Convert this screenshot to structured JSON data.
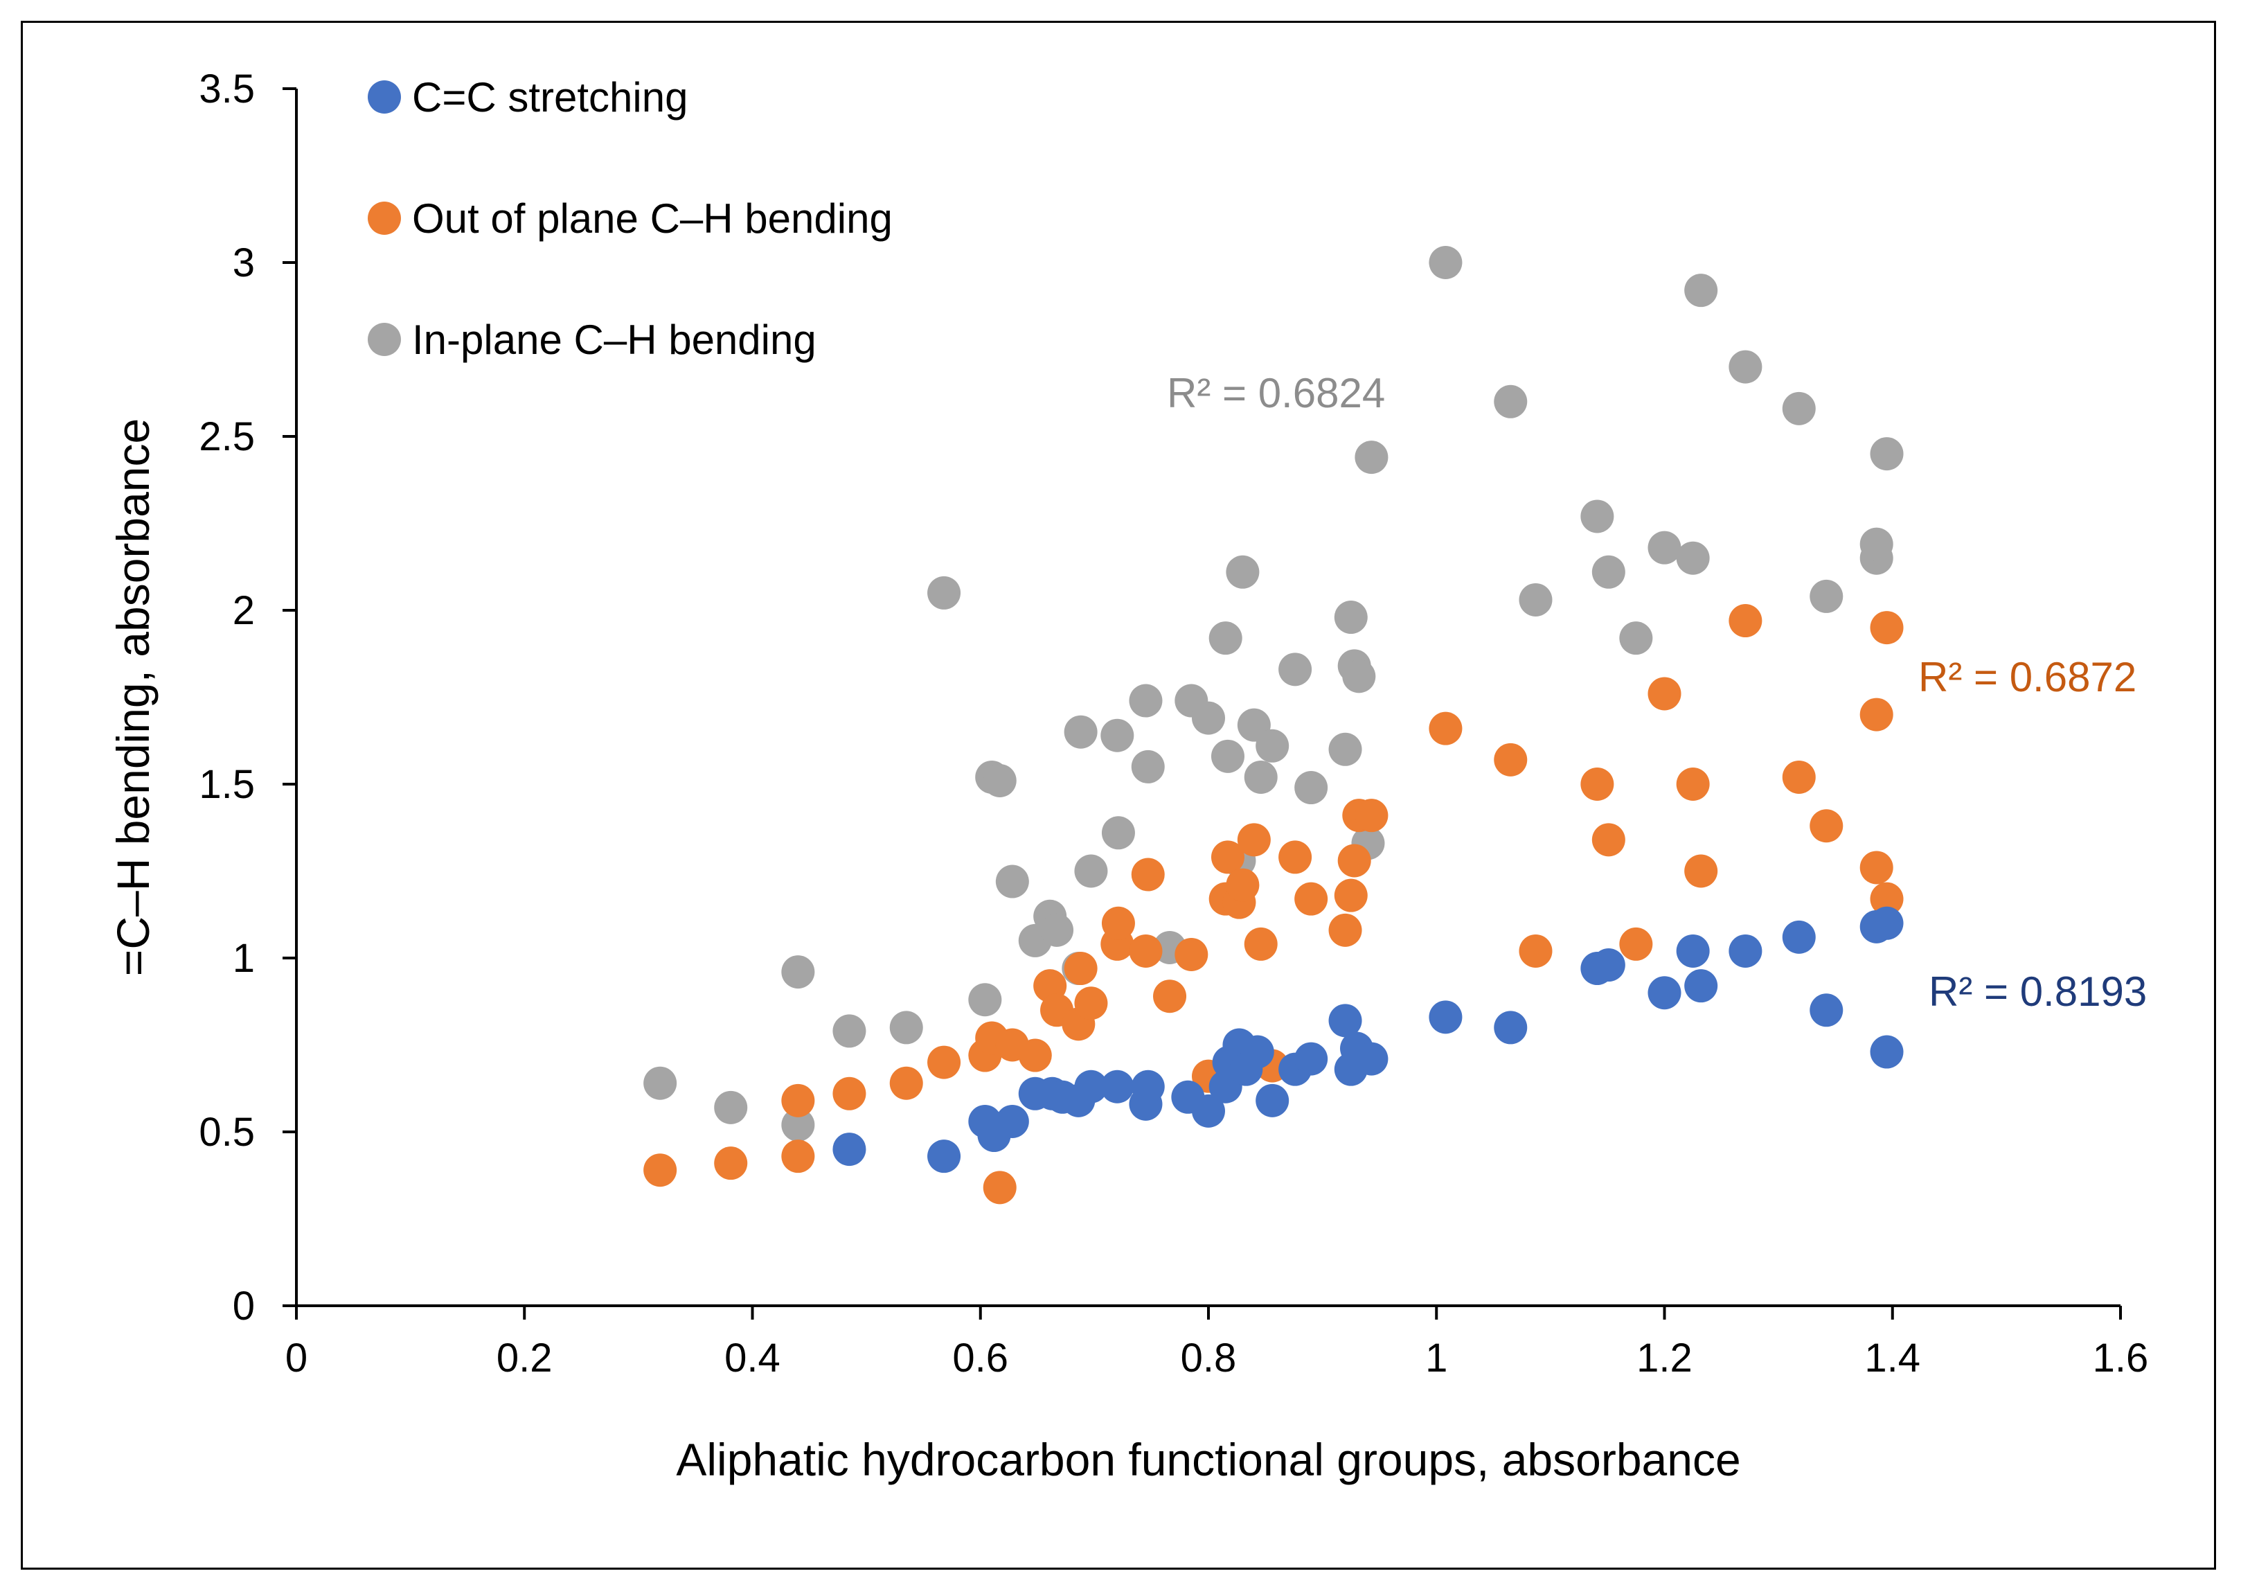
{
  "chart_data": {
    "type": "scatter",
    "title": "",
    "xlabel": "Aliphatic hydrocarbon functional groups, absorbance",
    "ylabel": "=C–H bending, absorbance",
    "xlim": [
      0,
      1.6
    ],
    "ylim": [
      0,
      3.5
    ],
    "xticks": [
      0,
      0.2,
      0.4,
      0.6,
      0.8,
      1,
      1.2,
      1.4,
      1.6
    ],
    "yticks": [
      0,
      0.5,
      1,
      1.5,
      2,
      2.5,
      3,
      3.5
    ],
    "xtick_labels": [
      "0",
      "0.2",
      "0.4",
      "0.6",
      "0.8",
      "1",
      "1.2",
      "1.4",
      "1.6"
    ],
    "ytick_labels": [
      "0",
      "0.5",
      "1",
      "1.5",
      "2",
      "2.5",
      "3",
      "3.5"
    ],
    "grid": false,
    "legend_position": "top-left",
    "series": [
      {
        "name": "C=C stretching",
        "color": "#4472C4",
        "r2_label": "R² = 0.8193",
        "r2_color": "#1F3B7A",
        "points": [
          [
            0.485,
            0.45
          ],
          [
            0.568,
            0.43
          ],
          [
            0.604,
            0.53
          ],
          [
            0.612,
            0.49
          ],
          [
            0.628,
            0.53
          ],
          [
            0.648,
            0.61
          ],
          [
            0.663,
            0.61
          ],
          [
            0.672,
            0.6
          ],
          [
            0.686,
            0.59
          ],
          [
            0.697,
            0.63
          ],
          [
            0.72,
            0.63
          ],
          [
            0.745,
            0.58
          ],
          [
            0.747,
            0.63
          ],
          [
            0.782,
            0.6
          ],
          [
            0.8,
            0.56
          ],
          [
            0.815,
            0.63
          ],
          [
            0.818,
            0.7
          ],
          [
            0.827,
            0.75
          ],
          [
            0.833,
            0.68
          ],
          [
            0.843,
            0.73
          ],
          [
            0.856,
            0.59
          ],
          [
            0.876,
            0.68
          ],
          [
            0.89,
            0.71
          ],
          [
            0.92,
            0.82
          ],
          [
            0.925,
            0.68
          ],
          [
            0.93,
            0.74
          ],
          [
            0.943,
            0.71
          ],
          [
            1.008,
            0.83
          ],
          [
            1.065,
            0.8
          ],
          [
            1.141,
            0.97
          ],
          [
            1.151,
            0.98
          ],
          [
            1.2,
            0.9
          ],
          [
            1.225,
            1.02
          ],
          [
            1.232,
            0.92
          ],
          [
            1.271,
            1.02
          ],
          [
            1.318,
            1.06
          ],
          [
            1.342,
            0.85
          ],
          [
            1.386,
            1.09
          ],
          [
            1.395,
            1.1
          ],
          [
            1.395,
            0.73
          ]
        ]
      },
      {
        "name": "Out of plane C–H bending",
        "color": "#ED7D31",
        "r2_label": "R² = 0.6872",
        "r2_color": "#C55A11",
        "points": [
          [
            0.319,
            0.39
          ],
          [
            0.381,
            0.41
          ],
          [
            0.44,
            0.43
          ],
          [
            0.44,
            0.59
          ],
          [
            0.485,
            0.61
          ],
          [
            0.535,
            0.64
          ],
          [
            0.568,
            0.7
          ],
          [
            0.604,
            0.72
          ],
          [
            0.61,
            0.77
          ],
          [
            0.617,
            0.34
          ],
          [
            0.628,
            0.75
          ],
          [
            0.648,
            0.72
          ],
          [
            0.661,
            0.92
          ],
          [
            0.667,
            0.85
          ],
          [
            0.686,
            0.81
          ],
          [
            0.688,
            0.97
          ],
          [
            0.697,
            0.87
          ],
          [
            0.72,
            1.04
          ],
          [
            0.721,
            1.1
          ],
          [
            0.745,
            1.02
          ],
          [
            0.747,
            1.24
          ],
          [
            0.766,
            0.89
          ],
          [
            0.785,
            1.01
          ],
          [
            0.8,
            0.66
          ],
          [
            0.815,
            1.17
          ],
          [
            0.817,
            1.29
          ],
          [
            0.827,
            1.16
          ],
          [
            0.83,
            1.21
          ],
          [
            0.84,
            1.34
          ],
          [
            0.846,
            1.04
          ],
          [
            0.856,
            0.69
          ],
          [
            0.876,
            1.29
          ],
          [
            0.89,
            1.17
          ],
          [
            0.92,
            1.08
          ],
          [
            0.925,
            1.18
          ],
          [
            0.928,
            1.28
          ],
          [
            0.932,
            1.41
          ],
          [
            0.943,
            1.41
          ],
          [
            1.008,
            1.66
          ],
          [
            1.065,
            1.57
          ],
          [
            1.087,
            1.02
          ],
          [
            1.141,
            1.5
          ],
          [
            1.151,
            1.34
          ],
          [
            1.175,
            1.04
          ],
          [
            1.2,
            1.76
          ],
          [
            1.225,
            1.5
          ],
          [
            1.232,
            1.25
          ],
          [
            1.271,
            1.97
          ],
          [
            1.318,
            1.52
          ],
          [
            1.342,
            1.38
          ],
          [
            1.386,
            1.7
          ],
          [
            1.386,
            1.26
          ],
          [
            1.395,
            1.17
          ],
          [
            1.395,
            1.95
          ]
        ]
      },
      {
        "name": "In-plane C–H bending",
        "color": "#A5A5A5",
        "r2_label": "R² = 0.6824",
        "r2_color": "#8C8C8C",
        "points": [
          [
            0.319,
            0.64
          ],
          [
            0.381,
            0.57
          ],
          [
            0.44,
            0.52
          ],
          [
            0.44,
            0.96
          ],
          [
            0.485,
            0.79
          ],
          [
            0.535,
            0.8
          ],
          [
            0.568,
            2.05
          ],
          [
            0.604,
            0.88
          ],
          [
            0.61,
            1.52
          ],
          [
            0.617,
            1.51
          ],
          [
            0.628,
            1.22
          ],
          [
            0.648,
            1.05
          ],
          [
            0.661,
            1.12
          ],
          [
            0.667,
            1.08
          ],
          [
            0.686,
            0.97
          ],
          [
            0.688,
            1.65
          ],
          [
            0.697,
            1.25
          ],
          [
            0.72,
            1.64
          ],
          [
            0.721,
            1.36
          ],
          [
            0.745,
            1.74
          ],
          [
            0.747,
            1.55
          ],
          [
            0.766,
            1.03
          ],
          [
            0.785,
            1.74
          ],
          [
            0.8,
            1.69
          ],
          [
            0.815,
            1.92
          ],
          [
            0.817,
            1.58
          ],
          [
            0.827,
            1.28
          ],
          [
            0.83,
            2.11
          ],
          [
            0.84,
            1.67
          ],
          [
            0.846,
            1.52
          ],
          [
            0.856,
            1.61
          ],
          [
            0.876,
            1.83
          ],
          [
            0.89,
            1.49
          ],
          [
            0.92,
            1.6
          ],
          [
            0.925,
            1.98
          ],
          [
            0.928,
            1.84
          ],
          [
            0.932,
            1.81
          ],
          [
            0.94,
            1.33
          ],
          [
            0.943,
            2.44
          ],
          [
            1.008,
            3.0
          ],
          [
            1.065,
            2.6
          ],
          [
            1.087,
            2.03
          ],
          [
            1.141,
            2.27
          ],
          [
            1.151,
            2.11
          ],
          [
            1.175,
            1.92
          ],
          [
            1.2,
            2.18
          ],
          [
            1.225,
            2.15
          ],
          [
            1.232,
            2.92
          ],
          [
            1.271,
            2.7
          ],
          [
            1.318,
            2.58
          ],
          [
            1.342,
            2.04
          ],
          [
            1.386,
            2.15
          ],
          [
            1.386,
            2.19
          ],
          [
            1.395,
            2.45
          ]
        ]
      }
    ]
  }
}
